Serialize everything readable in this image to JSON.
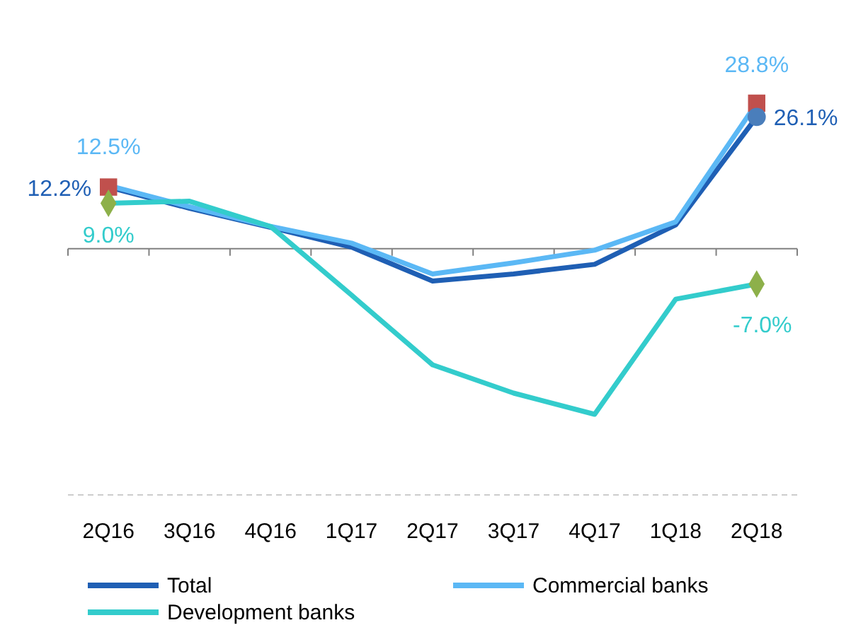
{
  "chart_data": {
    "type": "line",
    "categories": [
      "2Q16",
      "3Q16",
      "4Q16",
      "1Q17",
      "2Q17",
      "3Q17",
      "4Q17",
      "1Q18",
      "2Q18"
    ],
    "tick_labels": "x",
    "legend": "bottom",
    "marker": "none",
    "line_style": "solid",
    "series": [
      {
        "name": "Total",
        "color": "#1f5fb4",
        "values": [
          12.2,
          8.0,
          4.2,
          0.3,
          -6.4,
          -5.0,
          -3.1,
          4.7,
          26.1
        ],
        "value_labels": [
          "12.2%",
          null,
          null,
          null,
          null,
          null,
          null,
          null,
          "26.1%"
        ]
      },
      {
        "name": "Commercial banks",
        "color": "#5bb8f5",
        "values": [
          12.5,
          8.3,
          4.4,
          1.1,
          -5.0,
          -2.8,
          -0.3,
          5.3,
          28.8
        ],
        "value_labels": [
          "12.5%",
          null,
          null,
          null,
          null,
          null,
          null,
          null,
          "28.8%"
        ]
      },
      {
        "name": "Development banks",
        "color": "#33cccc",
        "values": [
          9.0,
          9.4,
          4.4,
          -9.2,
          -23.0,
          -28.6,
          -32.8,
          -10.0,
          -7.0
        ],
        "value_labels": [
          "9.0%",
          null,
          null,
          null,
          null,
          null,
          null,
          null,
          "-7.0%"
        ]
      },
      {
        "type": "scatter",
        "marker": "square",
        "color": "#c0504d",
        "x": [
          "2Q16",
          "2Q18"
        ],
        "values": [
          12.2,
          28.8
        ]
      },
      {
        "type": "scatter",
        "marker": "circle",
        "color": "#4a7ebb",
        "x": [
          "2Q18"
        ],
        "values": [
          26.1
        ]
      },
      {
        "type": "scatter",
        "marker": "diamond",
        "color": "#8db04a",
        "x": [
          "2Q16",
          "2Q18"
        ],
        "values": [
          9.0,
          -7.0
        ]
      }
    ]
  }
}
